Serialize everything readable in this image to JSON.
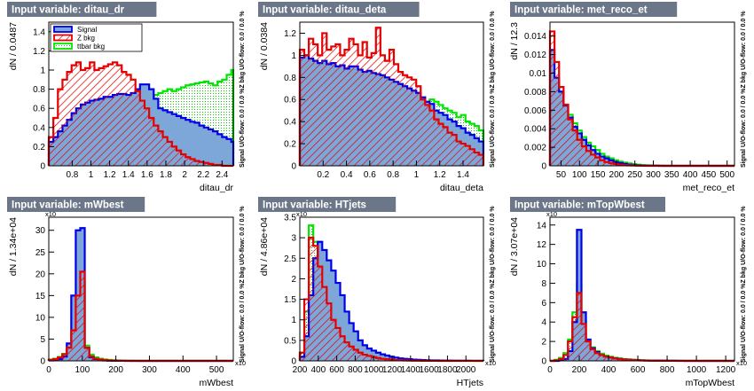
{
  "legend": {
    "items": [
      {
        "label": "Signal",
        "color": "#0000e6"
      },
      {
        "label": "Z bkg",
        "color": "#e60000"
      },
      {
        "label": "ttbar bkg",
        "color": "#00e600"
      }
    ]
  },
  "colors": {
    "signal_line": "#0000e6",
    "signal_fill": "#7da7d9",
    "z_line": "#e60000",
    "ttbar_line": "#00e600",
    "title_bg": "#6b7789"
  },
  "side_label_text": "Signal U/O-flow: 0.0 / 0.0 %Z bkg U/O-flow: 0.0 / 0.0 %",
  "chart_data": [
    {
      "type": "histogram",
      "title": "Input variable: ditau_dr",
      "xlabel": "ditau_dr",
      "ylabel": "dN / 0.0487",
      "xlim": [
        0.55,
        2.52
      ],
      "ylim": [
        0,
        1.5
      ],
      "xticks": [
        0.8,
        1,
        1.2,
        1.4,
        1.6,
        1.8,
        2,
        2.2,
        2.4
      ],
      "yticks": [
        0,
        0.2,
        0.4,
        0.6,
        0.8,
        1,
        1.2,
        1.4
      ],
      "y_multiplier": "",
      "show_legend": true,
      "x_start": 0.55,
      "bin_width": 0.0487,
      "series": [
        {
          "name": "Signal",
          "values": [
            0.25,
            0.3,
            0.36,
            0.42,
            0.48,
            0.55,
            0.6,
            0.64,
            0.66,
            0.68,
            0.69,
            0.7,
            0.72,
            0.72,
            0.74,
            0.75,
            0.75,
            0.74,
            0.76,
            0.8,
            0.85,
            0.85,
            0.8,
            0.7,
            0.6,
            0.58,
            0.56,
            0.54,
            0.52,
            0.5,
            0.48,
            0.46,
            0.45,
            0.42,
            0.4,
            0.38,
            0.36,
            0.33,
            0.3,
            0.28,
            0.25
          ]
        },
        {
          "name": "Z bkg",
          "values": [
            0.3,
            0.5,
            0.8,
            0.9,
            0.98,
            1.05,
            1.08,
            1.0,
            1.02,
            1.08,
            1.0,
            1.02,
            1.04,
            1.06,
            1.08,
            1.05,
            0.98,
            0.95,
            0.9,
            0.78,
            0.68,
            0.6,
            0.5,
            0.42,
            0.36,
            0.3,
            0.25,
            0.2,
            0.16,
            0.12,
            0.09,
            0.07,
            0.05,
            0.04,
            0.03,
            0.02,
            0.01,
            0.01,
            0.0,
            0.0,
            0.0
          ]
        },
        {
          "name": "ttbar bkg",
          "values": [
            0.05,
            0.07,
            0.1,
            0.12,
            0.15,
            0.18,
            0.2,
            0.22,
            0.25,
            0.28,
            0.3,
            0.33,
            0.36,
            0.4,
            0.43,
            0.46,
            0.5,
            0.54,
            0.58,
            0.62,
            0.66,
            0.7,
            0.72,
            0.74,
            0.76,
            0.78,
            0.8,
            0.78,
            0.8,
            0.82,
            0.84,
            0.85,
            0.86,
            0.87,
            0.88,
            0.86,
            0.84,
            0.88,
            0.9,
            0.95,
            1.0
          ]
        }
      ]
    },
    {
      "type": "histogram",
      "title": "Input variable: ditau_deta",
      "xlabel": "ditau_deta",
      "ylabel": "dN / 0.0384",
      "xlim": [
        0.0,
        1.575
      ],
      "ylim": [
        0,
        1.3
      ],
      "xticks": [
        0.2,
        0.4,
        0.6,
        0.8,
        1,
        1.2,
        1.4
      ],
      "yticks": [
        0,
        0.2,
        0.4,
        0.6,
        0.8,
        1,
        1.2
      ],
      "y_multiplier": "",
      "show_legend": false,
      "x_start": 0.0,
      "bin_width": 0.0384,
      "series": [
        {
          "name": "Signal",
          "values": [
            0.98,
            1.0,
            0.97,
            0.95,
            0.93,
            0.95,
            0.92,
            0.93,
            0.9,
            0.91,
            0.88,
            0.9,
            0.9,
            0.87,
            0.85,
            0.86,
            0.84,
            0.83,
            0.82,
            0.8,
            0.78,
            0.76,
            0.74,
            0.72,
            0.7,
            0.68,
            0.66,
            0.62,
            0.58,
            0.56,
            0.5,
            0.48,
            0.46,
            0.42,
            0.4,
            0.36,
            0.34,
            0.3,
            0.28,
            0.25,
            0.22
          ]
        },
        {
          "name": "Z bkg",
          "values": [
            1.05,
            1.0,
            1.15,
            1.1,
            1.0,
            1.2,
            1.05,
            1.08,
            1.1,
            1.0,
            1.05,
            1.15,
            1.1,
            1.0,
            1.12,
            0.98,
            1.02,
            1.25,
            1.0,
            0.95,
            1.05,
            0.92,
            0.85,
            0.82,
            0.8,
            0.78,
            0.72,
            0.6,
            0.55,
            0.5,
            0.42,
            0.38,
            0.35,
            0.3,
            0.28,
            0.22,
            0.2,
            0.18,
            0.15,
            0.12,
            0.1
          ]
        },
        {
          "name": "ttbar bkg",
          "values": [
            0.8,
            0.82,
            0.85,
            0.8,
            0.78,
            0.82,
            0.84,
            0.8,
            0.82,
            0.78,
            0.8,
            0.82,
            0.8,
            0.78,
            0.76,
            0.8,
            0.78,
            0.75,
            0.74,
            0.72,
            0.7,
            0.68,
            0.7,
            0.68,
            0.66,
            0.62,
            0.6,
            0.58,
            0.56,
            0.6,
            0.58,
            0.55,
            0.52,
            0.5,
            0.48,
            0.44,
            0.46,
            0.4,
            0.38,
            0.36,
            0.32
          ]
        }
      ]
    },
    {
      "type": "histogram",
      "title": "Input variable: met_reco_et",
      "xlabel": "met_reco_et",
      "ylabel": "dN / 12.3",
      "xlim": [
        20,
        520
      ],
      "ylim": [
        0,
        0.0155
      ],
      "xticks": [
        50,
        100,
        150,
        200,
        250,
        300,
        350,
        400,
        450,
        500
      ],
      "yticks": [
        0,
        0.002,
        0.004,
        0.006,
        0.008,
        0.01,
        0.012,
        0.014
      ],
      "y_multiplier": "",
      "show_legend": false,
      "x_start": 20,
      "bin_width": 12.3,
      "series": [
        {
          "name": "Signal",
          "values": [
            0.0125,
            0.0095,
            0.008,
            0.0065,
            0.0052,
            0.0042,
            0.0035,
            0.0028,
            0.0022,
            0.0017,
            0.0013,
            0.001,
            0.0008,
            0.0006,
            0.0004,
            0.0003,
            0.0002,
            0.00012,
            8e-05,
            5e-05,
            3e-05,
            2e-05,
            1e-05,
            1e-05,
            0,
            0,
            0,
            0,
            0,
            0,
            0,
            0,
            0,
            0,
            0,
            0,
            0,
            0,
            0,
            0,
            0
          ]
        },
        {
          "name": "Z bkg",
          "values": [
            0.0145,
            0.0112,
            0.0085,
            0.0066,
            0.005,
            0.0038,
            0.0028,
            0.0021,
            0.0016,
            0.0012,
            0.0009,
            0.0006,
            0.0004,
            0.0003,
            0.0002,
            0.00012,
            8e-05,
            5e-05,
            3e-05,
            2e-05,
            1e-05,
            0,
            0,
            0,
            0,
            0,
            0,
            0,
            0,
            0,
            0,
            0,
            0,
            0,
            0,
            0,
            0,
            0,
            0,
            0,
            0
          ]
        },
        {
          "name": "ttbar bkg",
          "values": [
            0.0085,
            0.009,
            0.0075,
            0.0064,
            0.0055,
            0.0046,
            0.0038,
            0.0031,
            0.0025,
            0.0021,
            0.0017,
            0.0013,
            0.001,
            0.0008,
            0.0006,
            0.00045,
            0.00035,
            0.00025,
            0.00018,
            0.00012,
            8e-05,
            5e-05,
            3e-05,
            2e-05,
            1e-05,
            0,
            0,
            0,
            0,
            0,
            0,
            0,
            0,
            0,
            0,
            0,
            0,
            0,
            0,
            0,
            0
          ]
        }
      ]
    },
    {
      "type": "histogram",
      "title": "Input variable: mWbest",
      "xlabel": "mWbest",
      "ylabel": "dN / 1.34e+04",
      "xlim": [
        0,
        550
      ],
      "ylim": [
        0,
        33
      ],
      "xticks": [
        0,
        100,
        200,
        300,
        400,
        500
      ],
      "yticks": [
        0,
        5,
        10,
        15,
        20,
        25,
        30
      ],
      "y_multiplier": "x10",
      "show_legend": false,
      "x_start": 0,
      "bin_width": 13.4,
      "series": [
        {
          "name": "Signal",
          "values": [
            0.1,
            0.2,
            0.4,
            1.0,
            4.0,
            15.0,
            30.0,
            30.5,
            3.0,
            0.8,
            0.4,
            0.2,
            0.1,
            0.05,
            0.03,
            0.02,
            0.01,
            0,
            0,
            0,
            0,
            0,
            0,
            0,
            0,
            0,
            0,
            0,
            0,
            0,
            0,
            0,
            0,
            0,
            0,
            0,
            0,
            0,
            0,
            0,
            0
          ]
        },
        {
          "name": "Z bkg",
          "values": [
            0.2,
            0.4,
            0.8,
            1.5,
            3.0,
            7.0,
            15.0,
            20.5,
            3.0,
            1.0,
            0.5,
            0.3,
            0.2,
            0.1,
            0.06,
            0.04,
            0.02,
            0.01,
            0,
            0,
            0,
            0,
            0,
            0,
            0,
            0,
            0,
            0,
            0,
            0,
            0,
            0,
            0,
            0,
            0,
            0,
            0,
            0,
            0,
            0,
            0
          ]
        },
        {
          "name": "ttbar bkg",
          "values": [
            0.3,
            0.5,
            0.9,
            1.6,
            3.0,
            6.0,
            14.0,
            18.0,
            3.5,
            1.4,
            0.8,
            0.5,
            0.3,
            0.2,
            0.12,
            0.08,
            0.05,
            0.03,
            0.02,
            0.01,
            0,
            0,
            0,
            0,
            0,
            0,
            0,
            0,
            0,
            0,
            0,
            0,
            0,
            0,
            0,
            0,
            0,
            0,
            0,
            0,
            0
          ]
        }
      ]
    },
    {
      "type": "histogram",
      "title": "Input variable: HTjets",
      "xlabel": "HTjets",
      "ylabel": "dN / 4.86e+04",
      "xlim": [
        200,
        2190
      ],
      "ylim": [
        0,
        3.5
      ],
      "xticks": [
        200,
        400,
        600,
        800,
        1000,
        1200,
        1400,
        1600,
        1800,
        2000
      ],
      "yticks": [
        0,
        0.5,
        1,
        1.5,
        2,
        2.5,
        3,
        3.5
      ],
      "y_multiplier": "x10",
      "show_legend": false,
      "x_start": 200,
      "bin_width": 48.6,
      "series": [
        {
          "name": "Signal",
          "values": [
            0.1,
            0.6,
            1.6,
            2.5,
            2.9,
            2.7,
            2.45,
            2.2,
            1.9,
            1.6,
            1.2,
            0.92,
            0.72,
            0.5,
            0.38,
            0.3,
            0.25,
            0.2,
            0.16,
            0.13,
            0.1,
            0.08,
            0.06,
            0.05,
            0.04,
            0.03,
            0.025,
            0.02,
            0.015,
            0.01,
            0.01,
            0.008,
            0.006,
            0.005,
            0.004,
            0.003,
            0.002,
            0.002,
            0.001,
            0.001,
            0.001
          ]
        },
        {
          "name": "Z bkg",
          "values": [
            0.2,
            1.5,
            3.0,
            2.8,
            2.3,
            1.8,
            1.4,
            1.0,
            0.8,
            0.6,
            0.45,
            0.35,
            0.27,
            0.2,
            0.15,
            0.12,
            0.09,
            0.07,
            0.05,
            0.04,
            0.03,
            0.02,
            0.015,
            0.01,
            0.008,
            0.005,
            0.004,
            0.003,
            0.002,
            0.001,
            0.001,
            0,
            0,
            0,
            0,
            0,
            0,
            0,
            0,
            0,
            0
          ]
        },
        {
          "name": "ttbar bkg",
          "values": [
            0.2,
            1.2,
            3.3,
            2.9,
            2.4,
            2.0,
            1.6,
            1.3,
            1.0,
            0.8,
            0.6,
            0.48,
            0.38,
            0.3,
            0.24,
            0.19,
            0.15,
            0.12,
            0.1,
            0.08,
            0.06,
            0.05,
            0.04,
            0.03,
            0.025,
            0.02,
            0.015,
            0.012,
            0.01,
            0.008,
            0.006,
            0.005,
            0.004,
            0.003,
            0.002,
            0.002,
            0.001,
            0.001,
            0.001,
            0,
            0
          ]
        }
      ]
    },
    {
      "type": "histogram",
      "title": "Input variable: mTopWbest",
      "xlabel": "mTopWbest",
      "ylabel": "dN / 3.07e+04",
      "xlim": [
        0,
        1260
      ],
      "ylim": [
        0,
        14.8
      ],
      "xticks": [
        0,
        200,
        400,
        600,
        800,
        1000,
        1200
      ],
      "yticks": [
        0,
        2,
        4,
        6,
        8,
        10,
        12,
        14
      ],
      "y_multiplier": "x10",
      "show_legend": false,
      "x_start": 0,
      "bin_width": 30.7,
      "series": [
        {
          "name": "Signal",
          "values": [
            0,
            0,
            0.05,
            0.2,
            1.0,
            4.0,
            13.5,
            5.0,
            2.2,
            1.3,
            0.9,
            0.6,
            0.45,
            0.35,
            0.27,
            0.2,
            0.15,
            0.12,
            0.09,
            0.07,
            0.05,
            0.04,
            0.03,
            0.025,
            0.02,
            0.015,
            0.01,
            0.008,
            0.006,
            0.004,
            0.003,
            0.002,
            0.002,
            0.001,
            0.001,
            0.001,
            0,
            0,
            0,
            0,
            0
          ]
        },
        {
          "name": "Z bkg",
          "values": [
            0,
            0.05,
            0.2,
            0.6,
            2.0,
            4.5,
            7.0,
            3.8,
            2.0,
            1.2,
            0.8,
            0.6,
            0.45,
            0.35,
            0.25,
            0.18,
            0.13,
            0.1,
            0.08,
            0.06,
            0.04,
            0.03,
            0.02,
            0.015,
            0.01,
            0.008,
            0.005,
            0.004,
            0.003,
            0.002,
            0.001,
            0.001,
            0,
            0,
            0,
            0,
            0,
            0,
            0,
            0,
            0
          ]
        },
        {
          "name": "ttbar bkg",
          "values": [
            0,
            0.1,
            0.3,
            0.8,
            2.2,
            5.0,
            8.0,
            4.2,
            2.2,
            1.4,
            1.0,
            0.75,
            0.55,
            0.42,
            0.32,
            0.25,
            0.19,
            0.15,
            0.12,
            0.09,
            0.07,
            0.05,
            0.04,
            0.03,
            0.025,
            0.02,
            0.015,
            0.012,
            0.01,
            0.008,
            0.006,
            0.005,
            0.004,
            0.003,
            0.002,
            0.002,
            0.001,
            0.001,
            0.001,
            0,
            0
          ]
        }
      ]
    }
  ]
}
